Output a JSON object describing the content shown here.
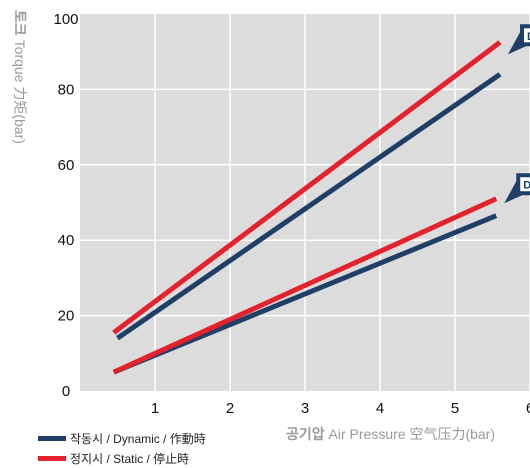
{
  "chart_data": {
    "type": "line",
    "title": "",
    "ylabel_bold": "토크",
    "ylabel_rest": " Torque 力矩(bar)",
    "xlabel_bold": "공기압",
    "xlabel_rest": " Air Pressure 空气压力(bar)",
    "x_ticks": [
      "1",
      "2",
      "3",
      "4",
      "5",
      "6"
    ],
    "y_ticks": [
      "0",
      "20",
      "40",
      "60",
      "80",
      "100"
    ],
    "xlim": [
      0.0,
      6.0
    ],
    "ylim": [
      0,
      100
    ],
    "grid": true,
    "callout_label": "D",
    "series": [
      {
        "name": "작동시 / Dynamic / 作動時",
        "group": "large",
        "color": "#1f3f66",
        "x": [
          0.5,
          5.6
        ],
        "y": [
          14,
          84
        ]
      },
      {
        "name": "정지시 / Static / 停止時",
        "group": "large",
        "color": "#e3222e",
        "x": [
          0.45,
          5.6
        ],
        "y": [
          15.5,
          92.5
        ]
      },
      {
        "name": "작동시 / Dynamic / 作動時",
        "group": "small",
        "color": "#1f3f66",
        "x": [
          0.45,
          5.55
        ],
        "y": [
          5,
          46.5
        ]
      },
      {
        "name": "정지시 / Static / 停止時",
        "group": "small",
        "color": "#e3222e",
        "x": [
          0.45,
          5.55
        ],
        "y": [
          5,
          51
        ]
      }
    ],
    "legend": [
      {
        "label": "작동시 / Dynamic / 作動時",
        "color": "#1f3f66"
      },
      {
        "label": "정지시 / Static / 停止時",
        "color": "#e3222e"
      }
    ],
    "legend_position": "bottom-left"
  }
}
